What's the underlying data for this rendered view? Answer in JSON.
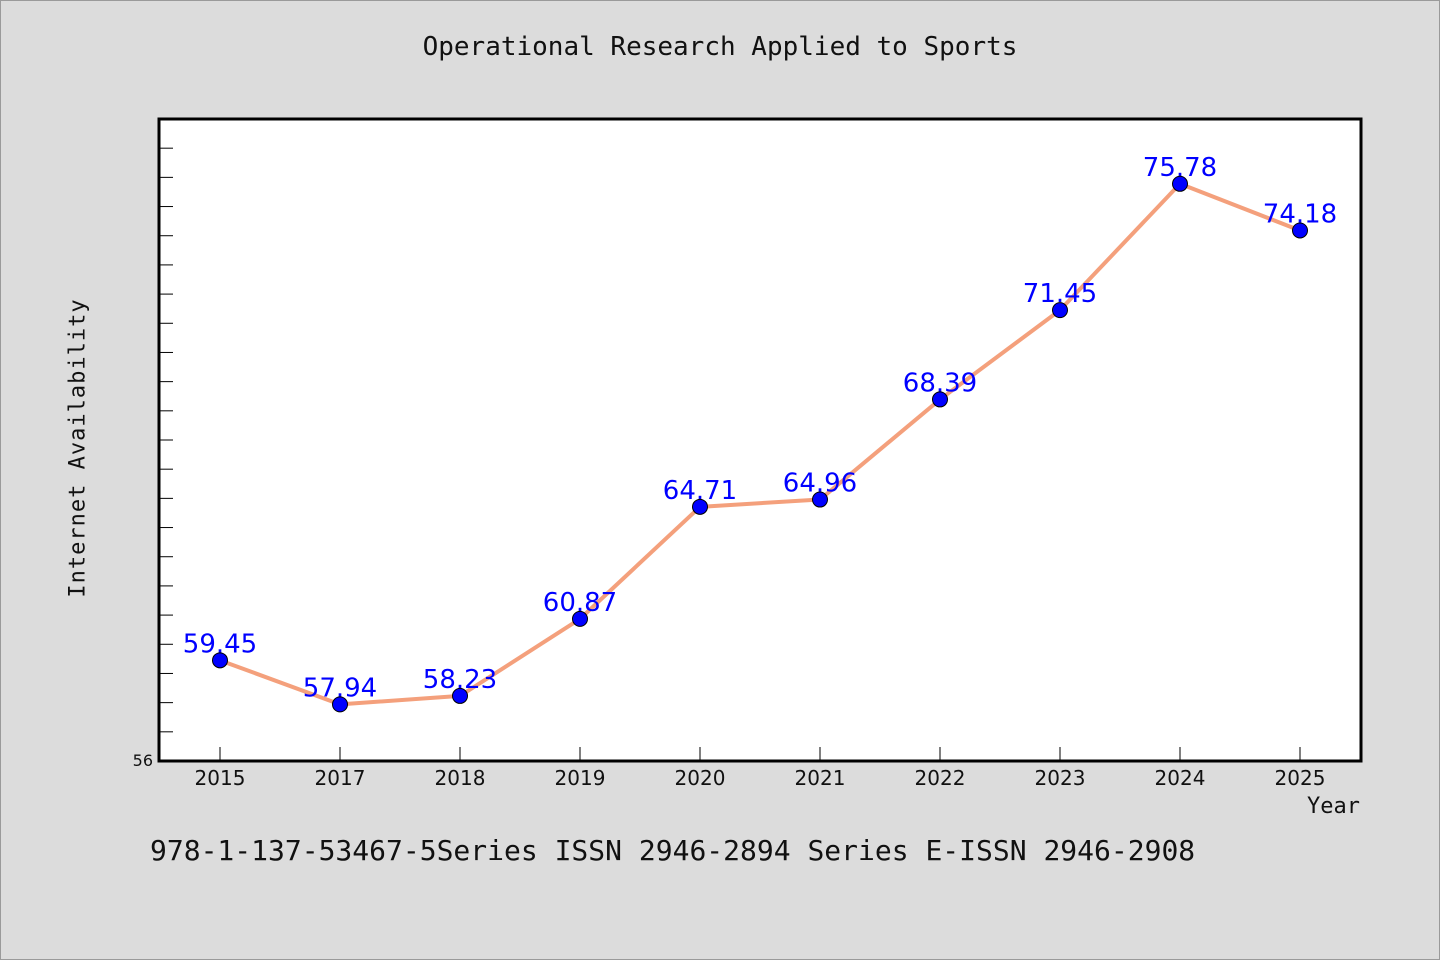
{
  "title": "Operational Research Applied to Sports",
  "footnote": "978-1-137-53467-5Series ISSN 2946-2894 Series E-ISSN 2946-2908",
  "chart_data": {
    "type": "line",
    "title": "Operational Research Applied to Sports",
    "xlabel": "Year",
    "ylabel": "Internet Availability",
    "categories": [
      "2015",
      "2017",
      "2018",
      "2019",
      "2020",
      "2021",
      "2022",
      "2023",
      "2024",
      "2025"
    ],
    "series": [
      {
        "values": [
          59.45,
          57.94,
          58.23,
          60.87,
          64.71,
          64.96,
          68.39,
          71.45,
          75.78,
          74.18
        ],
        "data_labels": [
          "59.45",
          "57.94",
          "58.23",
          "60.87",
          "64.71",
          "64.96",
          "68.39",
          "71.45",
          "75.78",
          "74.18"
        ],
        "line_color": "#f4a07c",
        "marker_color": "#0000ff"
      }
    ],
    "ylim": [
      56,
      78
    ],
    "y_tick_step": 1,
    "y_tick_labels": [
      "56"
    ],
    "grid": false,
    "legend": "none",
    "colors": {
      "background": "#dcdcdc",
      "plot_background": "#ffffff",
      "label": "#0000ff"
    }
  }
}
